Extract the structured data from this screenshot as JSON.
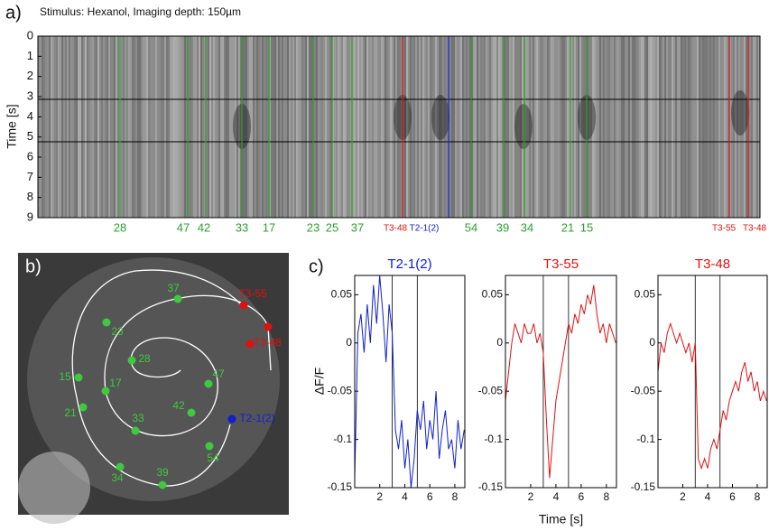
{
  "panel_a": {
    "label": "a)",
    "title": "Stimulus: Hexanol, Imaging depth: 150µm",
    "ylabel": "Time [s]",
    "ylim": [
      0,
      9
    ],
    "yticks": [
      0,
      1,
      2,
      3,
      4,
      5,
      6,
      7,
      8,
      9
    ],
    "columns": [
      {
        "label": "28",
        "color": "#2ca02c"
      },
      {
        "label": "47",
        "color": "#2ca02c"
      },
      {
        "label": "42",
        "color": "#2ca02c"
      },
      {
        "label": "33",
        "color": "#2ca02c"
      },
      {
        "label": "17",
        "color": "#2ca02c"
      },
      {
        "label": "23",
        "color": "#2ca02c"
      },
      {
        "label": "25",
        "color": "#2ca02c"
      },
      {
        "label": "37",
        "color": "#2ca02c"
      },
      {
        "label": "T3-48",
        "color": "#e01010"
      },
      {
        "label": "T2-1(2)",
        "color": "#1020d0"
      },
      {
        "label": "54",
        "color": "#2ca02c"
      },
      {
        "label": "39",
        "color": "#2ca02c"
      },
      {
        "label": "34",
        "color": "#2ca02c"
      },
      {
        "label": "21",
        "color": "#2ca02c"
      },
      {
        "label": "15",
        "color": "#2ca02c"
      },
      {
        "label": "T3-55",
        "color": "#e01010"
      },
      {
        "label": "T3-48",
        "color": "#e01010"
      }
    ]
  },
  "panel_b": {
    "label": "b)",
    "points": [
      {
        "label": "37",
        "color": "#3ec93e"
      },
      {
        "label": "T3-55",
        "color": "#e01010"
      },
      {
        "label": "23",
        "color": "#3ec93e"
      },
      {
        "label": "T3-48",
        "color": "#e01010"
      },
      {
        "label": "28",
        "color": "#3ec93e"
      },
      {
        "label": "47",
        "color": "#3ec93e"
      },
      {
        "label": "15",
        "color": "#3ec93e"
      },
      {
        "label": "17",
        "color": "#3ec93e"
      },
      {
        "label": "42",
        "color": "#3ec93e"
      },
      {
        "label": "T2-1(2)",
        "color": "#1020d0"
      },
      {
        "label": "21",
        "color": "#3ec93e"
      },
      {
        "label": "33",
        "color": "#3ec93e"
      },
      {
        "label": "54",
        "color": "#3ec93e"
      },
      {
        "label": "34",
        "color": "#3ec93e"
      },
      {
        "label": "39",
        "color": "#3ec93e"
      }
    ]
  },
  "panel_c": {
    "label": "c)"
  },
  "chart_data": [
    {
      "type": "line",
      "title": "T2-1(2)",
      "ylabel": "ΔF/F",
      "xlim": [
        0,
        8.8
      ],
      "ylim": [
        -0.15,
        0.07
      ],
      "xticks": [
        2,
        4,
        6,
        8
      ],
      "yticks": [
        0.05,
        0,
        -0.05,
        -0.1,
        -0.15
      ],
      "x": [
        0,
        0.25,
        0.5,
        0.75,
        1,
        1.25,
        1.5,
        1.75,
        2,
        2.25,
        2.5,
        2.75,
        3,
        3.25,
        3.5,
        3.75,
        4,
        4.25,
        4.5,
        4.75,
        5,
        5.25,
        5.5,
        5.75,
        6,
        6.25,
        6.5,
        6.75,
        7,
        7.25,
        7.5,
        7.75,
        8,
        8.25,
        8.5,
        8.75
      ],
      "series": [
        {
          "name": "T2-1(2)",
          "color": "#1020d0",
          "values": [
            -0.14,
            0.01,
            0.03,
            -0.01,
            0.04,
            0.0,
            0.06,
            0.02,
            0.07,
            0.03,
            -0.02,
            0.04,
            0.01,
            -0.09,
            -0.11,
            -0.08,
            -0.13,
            -0.1,
            -0.15,
            -0.12,
            -0.07,
            -0.09,
            -0.06,
            -0.11,
            -0.08,
            -0.1,
            -0.05,
            -0.12,
            -0.09,
            -0.07,
            -0.11,
            -0.1,
            -0.13,
            -0.08,
            -0.11,
            -0.09
          ]
        }
      ]
    },
    {
      "type": "line",
      "title": "T3-55",
      "xlabel": "Time [s]",
      "xlim": [
        0,
        8.8
      ],
      "ylim": [
        -0.15,
        0.07
      ],
      "xticks": [
        2,
        4,
        6,
        8
      ],
      "yticks": [
        0.05,
        0,
        -0.05,
        -0.1,
        -0.15
      ],
      "x": [
        0,
        0.25,
        0.5,
        0.75,
        1,
        1.25,
        1.5,
        1.75,
        2,
        2.25,
        2.5,
        2.75,
        3,
        3.25,
        3.5,
        3.75,
        4,
        4.25,
        4.5,
        4.75,
        5,
        5.25,
        5.5,
        5.75,
        6,
        6.25,
        6.5,
        6.75,
        7,
        7.25,
        7.5,
        7.75,
        8,
        8.25,
        8.5,
        8.75
      ],
      "series": [
        {
          "name": "T3-55",
          "color": "#e01010",
          "values": [
            -0.06,
            -0.03,
            0.0,
            0.02,
            0.01,
            0.0,
            0.02,
            0.01,
            0.01,
            0.02,
            0.0,
            0.01,
            -0.01,
            -0.08,
            -0.14,
            -0.1,
            -0.06,
            -0.04,
            -0.02,
            0.0,
            0.02,
            0.01,
            0.03,
            0.02,
            0.04,
            0.03,
            0.05,
            0.04,
            0.06,
            0.03,
            0.01,
            0.02,
            0.0,
            0.02,
            0.01,
            0.0
          ]
        }
      ]
    },
    {
      "type": "line",
      "title": "T3-48",
      "xlim": [
        0,
        8.8
      ],
      "ylim": [
        -0.15,
        0.07
      ],
      "xticks": [
        2,
        4,
        6,
        8
      ],
      "yticks": [
        0.05,
        0,
        -0.05,
        -0.1,
        -0.15
      ],
      "x": [
        0,
        0.25,
        0.5,
        0.75,
        1,
        1.25,
        1.5,
        1.75,
        2,
        2.25,
        2.5,
        2.75,
        3,
        3.25,
        3.5,
        3.75,
        4,
        4.25,
        4.5,
        4.75,
        5,
        5.25,
        5.5,
        5.75,
        6,
        6.25,
        6.5,
        6.75,
        7,
        7.25,
        7.5,
        7.75,
        8,
        8.25,
        8.5,
        8.75
      ],
      "series": [
        {
          "name": "T3-48",
          "color": "#e01010",
          "values": [
            -0.03,
            0.0,
            -0.01,
            0.01,
            0.02,
            0.01,
            0.0,
            0.01,
            0.0,
            -0.01,
            0.0,
            -0.02,
            0.0,
            -0.12,
            -0.13,
            -0.12,
            -0.13,
            -0.11,
            -0.1,
            -0.11,
            -0.09,
            -0.07,
            -0.08,
            -0.06,
            -0.05,
            -0.04,
            -0.05,
            -0.03,
            -0.02,
            -0.04,
            -0.03,
            -0.05,
            -0.04,
            -0.06,
            -0.05,
            -0.06
          ]
        }
      ]
    }
  ]
}
